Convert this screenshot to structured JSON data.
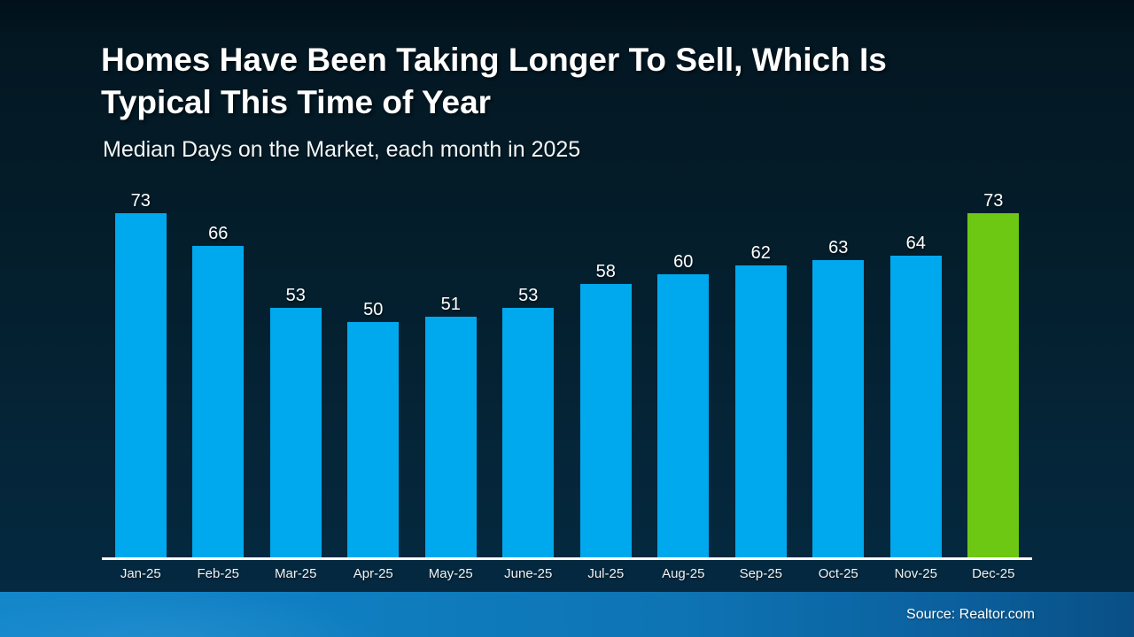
{
  "header": {
    "title_lines": [
      "Homes Have Been Taking Longer To Sell, Which Is",
      "Typical This Time of Year"
    ],
    "subtitle": "Median Days on the Market, each month in 2025"
  },
  "chart_data": {
    "type": "bar",
    "title": "Homes Have Been Taking Longer To Sell, Which Is Typical This Time of Year",
    "subtitle": "Median Days on the Market, each month in 2025",
    "categories": [
      "Jan-25",
      "Feb-25",
      "Mar-25",
      "Apr-25",
      "May-25",
      "June-25",
      "Jul-25",
      "Aug-25",
      "Sep-25",
      "Oct-25",
      "Nov-25",
      "Dec-25"
    ],
    "values": [
      73,
      66,
      53,
      50,
      51,
      53,
      58,
      60,
      62,
      63,
      64,
      73
    ],
    "xlabel": "",
    "ylabel": "Median Days on the Market",
    "ylim": [
      0,
      73
    ],
    "grid": false,
    "legend": "none",
    "value_labels_shown": true,
    "bar_color": "#00A9EE",
    "highlight_color": "#6CC813",
    "highlight_index": 11,
    "axis_line_color": "#FFFFFF"
  },
  "footer": {
    "source": "Source: Realtor.com",
    "band_color_left": "#1487CB",
    "band_color_right": "#094F85"
  }
}
